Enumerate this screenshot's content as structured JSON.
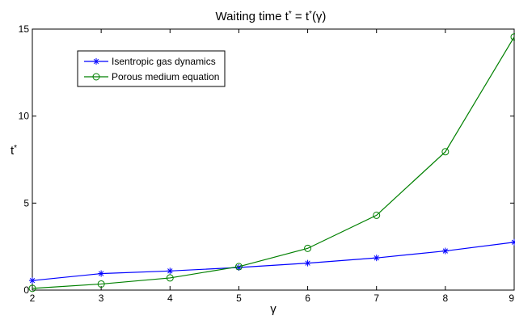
{
  "chart_data": {
    "type": "line",
    "title": "Waiting time t* = t*(γ)",
    "title_parts": {
      "prefix": "Waiting time t",
      "sup1": "*",
      "middle": " = t",
      "sup2": "*",
      "suffix": "(γ)"
    },
    "xlabel": "γ",
    "ylabel": "t",
    "ylabel_sup": "*",
    "x": [
      2,
      3,
      4,
      5,
      6,
      7,
      8,
      9
    ],
    "xlim": [
      2,
      9
    ],
    "ylim": [
      0,
      15
    ],
    "xticks": [
      2,
      3,
      4,
      5,
      6,
      7,
      8,
      9
    ],
    "yticks": [
      0,
      5,
      10,
      15
    ],
    "grid": false,
    "legend_position": "top-left",
    "series": [
      {
        "name": "Isentropic gas dynamics",
        "color": "#0000ff",
        "marker": "asterisk",
        "values": [
          0.55,
          0.95,
          1.1,
          1.3,
          1.55,
          1.85,
          2.25,
          2.75
        ]
      },
      {
        "name": "Porous medium equation",
        "color": "#008000",
        "marker": "circle",
        "values": [
          0.1,
          0.35,
          0.7,
          1.35,
          2.4,
          4.3,
          7.95,
          14.55
        ]
      }
    ]
  }
}
